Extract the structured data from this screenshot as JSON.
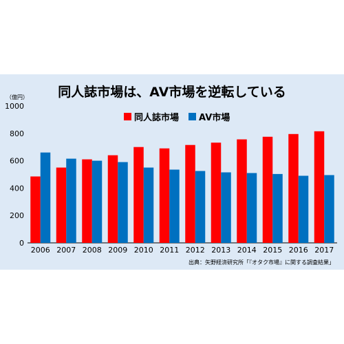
{
  "chart_data": {
    "type": "bar",
    "title": "同人誌市場は、AV市場を逆転している",
    "unit_label": "（億円）",
    "categories": [
      "2006",
      "2007",
      "2008",
      "2009",
      "2010",
      "2011",
      "2012",
      "2013",
      "2014",
      "2015",
      "2016",
      "2017"
    ],
    "series": [
      {
        "name": "同人誌市場",
        "color": "#ff0000",
        "values": [
          485,
          550,
          610,
          640,
          700,
          690,
          715,
          732,
          756,
          775,
          795,
          815
        ]
      },
      {
        "name": "AV市場",
        "color": "#0070c0",
        "values": [
          660,
          615,
          600,
          590,
          550,
          535,
          525,
          515,
          510,
          503,
          490,
          495
        ]
      }
    ],
    "ylim": [
      0,
      1000
    ],
    "yticks": [
      0,
      200,
      400,
      600,
      800,
      1000
    ],
    "grid": false,
    "legend_position": "top-center",
    "source": "出典：矢野経済研究所「『オタク市場』に関する調査結果」"
  }
}
